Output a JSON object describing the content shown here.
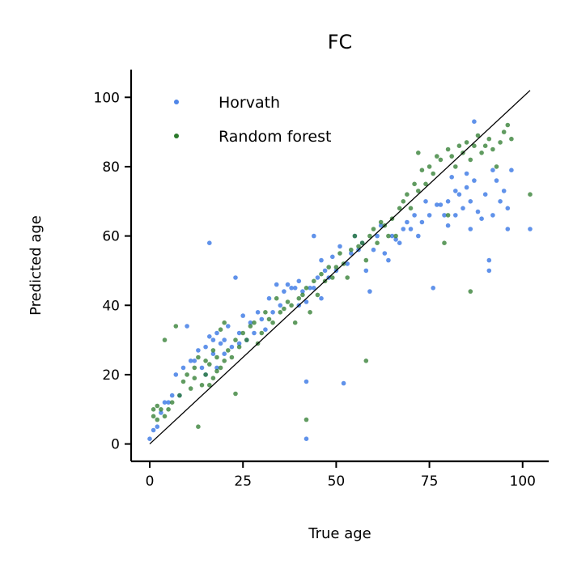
{
  "chart_data": {
    "type": "scatter",
    "title": "FC",
    "xlabel": "True age",
    "ylabel": "Predicted age",
    "xlim": [
      -5,
      107
    ],
    "ylim": [
      -5,
      108
    ],
    "xticks": [
      0,
      25,
      50,
      75,
      100
    ],
    "yticks": [
      0,
      20,
      40,
      60,
      80,
      100
    ],
    "grid": false,
    "legend": "top-left",
    "reference_line": [
      [
        0,
        0
      ],
      [
        102,
        102
      ]
    ],
    "colors": {
      "Horvath": "#4f86e8",
      "Random forest": "#2b7a2b"
    },
    "series": [
      {
        "name": "Horvath",
        "points": [
          [
            0,
            1.5
          ],
          [
            1,
            4
          ],
          [
            2,
            5
          ],
          [
            3,
            9
          ],
          [
            4,
            12
          ],
          [
            5,
            12
          ],
          [
            6,
            14
          ],
          [
            7,
            20
          ],
          [
            8,
            14
          ],
          [
            9,
            22
          ],
          [
            10,
            34
          ],
          [
            11,
            24
          ],
          [
            12,
            24
          ],
          [
            13,
            27
          ],
          [
            14,
            22
          ],
          [
            15,
            20
          ],
          [
            15,
            28
          ],
          [
            16,
            31
          ],
          [
            16,
            58
          ],
          [
            17,
            30
          ],
          [
            17,
            26
          ],
          [
            18,
            32
          ],
          [
            18,
            22
          ],
          [
            19,
            29
          ],
          [
            20,
            30
          ],
          [
            20,
            26
          ],
          [
            21,
            34
          ],
          [
            22,
            28
          ],
          [
            23,
            48
          ],
          [
            24,
            32
          ],
          [
            24,
            29
          ],
          [
            25,
            37
          ],
          [
            26,
            30
          ],
          [
            27,
            35
          ],
          [
            28,
            32
          ],
          [
            29,
            38
          ],
          [
            30,
            36
          ],
          [
            31,
            33
          ],
          [
            32,
            42
          ],
          [
            33,
            38
          ],
          [
            34,
            46
          ],
          [
            35,
            40
          ],
          [
            36,
            44
          ],
          [
            37,
            46
          ],
          [
            38,
            45
          ],
          [
            39,
            45
          ],
          [
            40,
            47
          ],
          [
            40,
            40
          ],
          [
            41,
            44
          ],
          [
            42,
            41
          ],
          [
            42,
            18
          ],
          [
            42,
            1.5
          ],
          [
            43,
            45
          ],
          [
            44,
            60
          ],
          [
            44,
            45
          ],
          [
            45,
            48
          ],
          [
            46,
            42
          ],
          [
            46,
            53
          ],
          [
            47,
            50
          ],
          [
            48,
            48
          ],
          [
            49,
            54
          ],
          [
            50,
            50
          ],
          [
            51,
            57
          ],
          [
            52,
            17.5
          ],
          [
            53,
            52
          ],
          [
            54,
            55
          ],
          [
            55,
            60
          ],
          [
            56,
            56
          ],
          [
            57,
            58
          ],
          [
            58,
            50
          ],
          [
            59,
            44
          ],
          [
            60,
            56
          ],
          [
            61,
            60
          ],
          [
            62,
            63
          ],
          [
            63,
            55
          ],
          [
            64,
            53
          ],
          [
            65,
            60
          ],
          [
            66,
            59
          ],
          [
            67,
            58
          ],
          [
            68,
            62
          ],
          [
            69,
            64
          ],
          [
            70,
            62
          ],
          [
            71,
            66
          ],
          [
            72,
            60
          ],
          [
            73,
            64
          ],
          [
            74,
            70
          ],
          [
            75,
            66
          ],
          [
            76,
            45
          ],
          [
            77,
            69
          ],
          [
            78,
            69
          ],
          [
            79,
            66
          ],
          [
            80,
            70
          ],
          [
            80,
            63
          ],
          [
            81,
            77
          ],
          [
            82,
            73
          ],
          [
            82,
            66
          ],
          [
            83,
            72
          ],
          [
            84,
            68
          ],
          [
            85,
            74
          ],
          [
            85,
            78
          ],
          [
            86,
            70
          ],
          [
            86,
            62
          ],
          [
            87,
            93
          ],
          [
            87,
            76
          ],
          [
            88,
            67
          ],
          [
            89,
            65
          ],
          [
            90,
            72
          ],
          [
            91,
            53
          ],
          [
            91,
            50
          ],
          [
            92,
            79
          ],
          [
            92,
            66
          ],
          [
            93,
            76
          ],
          [
            94,
            70
          ],
          [
            95,
            73
          ],
          [
            96,
            68
          ],
          [
            96,
            62
          ],
          [
            97,
            79
          ],
          [
            102,
            62
          ]
        ]
      },
      {
        "name": "Random forest",
        "points": [
          [
            1,
            8
          ],
          [
            1,
            10
          ],
          [
            2,
            7
          ],
          [
            2,
            11
          ],
          [
            3,
            10
          ],
          [
            4,
            8
          ],
          [
            4,
            30
          ],
          [
            5,
            10
          ],
          [
            6,
            12
          ],
          [
            7,
            34
          ],
          [
            8,
            14
          ],
          [
            9,
            18
          ],
          [
            10,
            20
          ],
          [
            11,
            16
          ],
          [
            12,
            22
          ],
          [
            12,
            19
          ],
          [
            13,
            5
          ],
          [
            13,
            25
          ],
          [
            14,
            17
          ],
          [
            15,
            20
          ],
          [
            15,
            24
          ],
          [
            16,
            17
          ],
          [
            16,
            23
          ],
          [
            17,
            19
          ],
          [
            17,
            27
          ],
          [
            18,
            21
          ],
          [
            18,
            25
          ],
          [
            19,
            33
          ],
          [
            19,
            22
          ],
          [
            20,
            24
          ],
          [
            20,
            35
          ],
          [
            21,
            27
          ],
          [
            22,
            25
          ],
          [
            23,
            14.5
          ],
          [
            23,
            30
          ],
          [
            24,
            28
          ],
          [
            25,
            32
          ],
          [
            26,
            30
          ],
          [
            27,
            34
          ],
          [
            28,
            35
          ],
          [
            29,
            29
          ],
          [
            30,
            32
          ],
          [
            31,
            38
          ],
          [
            32,
            36
          ],
          [
            33,
            35
          ],
          [
            34,
            42
          ],
          [
            35,
            38
          ],
          [
            36,
            39
          ],
          [
            37,
            41
          ],
          [
            38,
            40
          ],
          [
            39,
            35
          ],
          [
            40,
            42
          ],
          [
            41,
            43
          ],
          [
            42,
            7
          ],
          [
            42,
            45
          ],
          [
            43,
            38
          ],
          [
            44,
            47
          ],
          [
            45,
            43
          ],
          [
            46,
            49
          ],
          [
            47,
            47
          ],
          [
            48,
            51
          ],
          [
            49,
            48
          ],
          [
            50,
            51
          ],
          [
            51,
            55
          ],
          [
            52,
            52
          ],
          [
            53,
            48
          ],
          [
            54,
            56
          ],
          [
            55,
            60
          ],
          [
            56,
            57
          ],
          [
            57,
            58
          ],
          [
            58,
            24
          ],
          [
            58,
            53
          ],
          [
            59,
            60
          ],
          [
            60,
            62
          ],
          [
            61,
            58
          ],
          [
            62,
            64
          ],
          [
            63,
            63
          ],
          [
            64,
            60
          ],
          [
            65,
            65
          ],
          [
            66,
            60
          ],
          [
            67,
            68
          ],
          [
            68,
            70
          ],
          [
            69,
            72
          ],
          [
            70,
            68
          ],
          [
            71,
            75
          ],
          [
            72,
            84
          ],
          [
            72,
            73
          ],
          [
            73,
            79
          ],
          [
            74,
            75
          ],
          [
            75,
            80
          ],
          [
            76,
            78
          ],
          [
            77,
            83
          ],
          [
            78,
            82
          ],
          [
            79,
            58
          ],
          [
            80,
            85
          ],
          [
            80,
            66
          ],
          [
            81,
            83
          ],
          [
            82,
            80
          ],
          [
            83,
            86
          ],
          [
            84,
            84
          ],
          [
            85,
            87
          ],
          [
            86,
            82
          ],
          [
            86,
            44
          ],
          [
            87,
            86
          ],
          [
            88,
            89
          ],
          [
            89,
            84
          ],
          [
            90,
            86
          ],
          [
            91,
            88
          ],
          [
            92,
            85
          ],
          [
            93,
            80
          ],
          [
            94,
            87
          ],
          [
            95,
            90
          ],
          [
            96,
            92
          ],
          [
            97,
            88
          ],
          [
            102,
            72
          ]
        ]
      }
    ]
  }
}
